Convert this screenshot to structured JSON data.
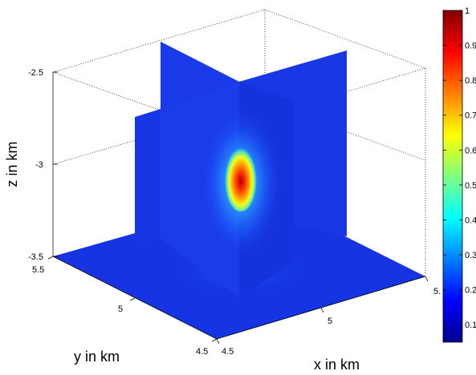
{
  "chart_data": {
    "type": "slice-volume",
    "xlabel": "x in km",
    "ylabel": "y in km",
    "zlabel": "z in km",
    "x_ticks": [
      "4.5",
      "5",
      "5."
    ],
    "y_ticks": [
      "5.5",
      "5",
      "4.5"
    ],
    "z_ticks": [
      "-2.5",
      "-3",
      "-3.5"
    ],
    "xlim": [
      4.5,
      5.5
    ],
    "ylim": [
      4.5,
      5.5
    ],
    "zlim": [
      -3.5,
      -2.5
    ],
    "grid": true,
    "colormap": "jet",
    "colorbar": {
      "ticks": [
        "1",
        "0.9",
        "0.8",
        "0.7",
        "0.6",
        "0.5",
        "0.4",
        "0.3",
        "0.2",
        "0.1"
      ],
      "range": [
        0.05,
        1
      ]
    },
    "peak": {
      "value": 1,
      "x": 5,
      "y": 5,
      "z": -3.05
    },
    "background_value": 0.1
  }
}
